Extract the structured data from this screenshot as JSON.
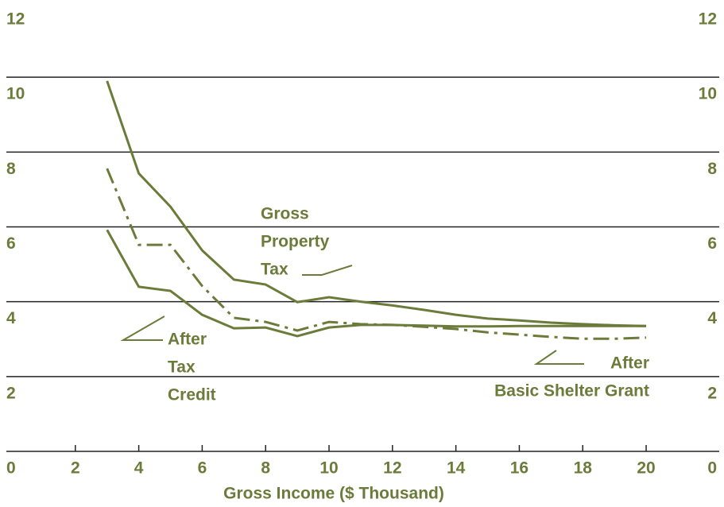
{
  "chart_data": {
    "type": "line",
    "x_label": "Gross Income ($ Thousand)",
    "xlim": [
      0,
      20.5
    ],
    "xticks": [
      2,
      4,
      6,
      8,
      10,
      12,
      14,
      16,
      18,
      20
    ],
    "ylim": [
      0,
      12
    ],
    "yticks": [
      0,
      2,
      4,
      6,
      8,
      10,
      12
    ],
    "y2lim": [
      0,
      12
    ],
    "y2ticks": [
      0,
      2,
      4,
      6,
      8,
      10,
      12
    ],
    "grid": true,
    "x": [
      3,
      4,
      5,
      6,
      7,
      8,
      9,
      10,
      11,
      12,
      13,
      14,
      15,
      16,
      17,
      18,
      19,
      20
    ],
    "series": [
      {
        "color": "#6b7b3a",
        "style": "solid",
        "values": [
          9.9,
          7.43,
          6.54,
          5.37,
          4.59,
          4.46,
          3.99,
          4.12,
          4.0,
          3.9,
          3.78,
          3.65,
          3.55,
          3.5,
          3.44,
          3.4,
          3.37,
          3.35
        ]
      },
      {
        "color": "#6b7b3a",
        "style": "solid",
        "values": [
          5.92,
          4.4,
          4.29,
          3.65,
          3.29,
          3.31,
          3.08,
          3.31,
          3.38,
          3.38,
          3.36,
          3.34,
          3.34,
          3.35,
          3.35,
          3.35,
          3.35,
          3.35
        ]
      },
      {
        "color": "#6b7b3a",
        "style": "dashdot",
        "values": [
          7.56,
          5.52,
          5.52,
          4.42,
          3.57,
          3.46,
          3.23,
          3.46,
          3.4,
          3.38,
          3.33,
          3.27,
          3.18,
          3.12,
          3.06,
          3.01,
          3.01,
          3.04
        ]
      }
    ],
    "annotations": [
      {
        "lines": [
          "Gross",
          "Property",
          "Tax"
        ]
      },
      {
        "lines": [
          "After",
          "Tax",
          "Credit"
        ]
      },
      {
        "lines": [
          "After",
          "Basic Shelter Grant"
        ]
      }
    ]
  }
}
